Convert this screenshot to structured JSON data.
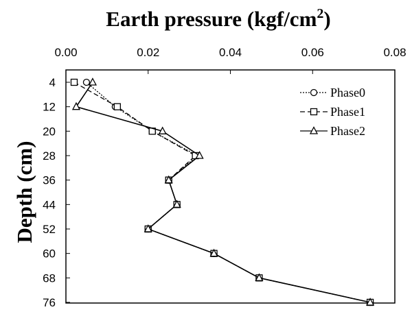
{
  "chart_data": {
    "type": "line",
    "title": "Earth pressure (kgf/cm",
    "title_superscript": "2",
    "title_suffix": ")",
    "ylabel": "Depth (cm)",
    "x_axis_position": "top",
    "y_axis_inverted": true,
    "xlim": [
      0,
      0.08
    ],
    "ylim": [
      4,
      76
    ],
    "xticks": [
      "0.00",
      "0.02",
      "0.04",
      "0.06",
      "0.08"
    ],
    "yticks": [
      "4",
      "12",
      "20",
      "28",
      "36",
      "44",
      "52",
      "60",
      "68",
      "76"
    ],
    "grid": false,
    "legend_position": "top-right",
    "series": [
      {
        "name": "Phase0",
        "marker": "circle",
        "line": "dotted",
        "points": [
          [
            0.005,
            4
          ],
          [
            0.012,
            12
          ],
          [
            0.021,
            20
          ],
          [
            0.032,
            28
          ],
          [
            0.025,
            36
          ],
          [
            0.027,
            44
          ],
          [
            0.02,
            52
          ],
          [
            0.036,
            60
          ],
          [
            0.047,
            68
          ],
          [
            0.074,
            76
          ]
        ]
      },
      {
        "name": "Phase1",
        "marker": "square",
        "line": "dashed",
        "points": [
          [
            0.002,
            4
          ],
          [
            0.0125,
            12
          ],
          [
            0.021,
            20
          ],
          [
            0.0315,
            28
          ],
          [
            0.025,
            36
          ],
          [
            0.027,
            44
          ],
          [
            0.02,
            52
          ],
          [
            0.036,
            60
          ],
          [
            0.047,
            68
          ],
          [
            0.074,
            76
          ]
        ]
      },
      {
        "name": "Phase2",
        "marker": "triangle",
        "line": "solid",
        "points": [
          [
            0.0065,
            4
          ],
          [
            0.0025,
            12
          ],
          [
            0.0235,
            20
          ],
          [
            0.0325,
            28
          ],
          [
            0.025,
            36
          ],
          [
            0.027,
            44
          ],
          [
            0.02,
            52
          ],
          [
            0.036,
            60
          ],
          [
            0.047,
            68
          ],
          [
            0.074,
            76
          ]
        ]
      }
    ]
  }
}
